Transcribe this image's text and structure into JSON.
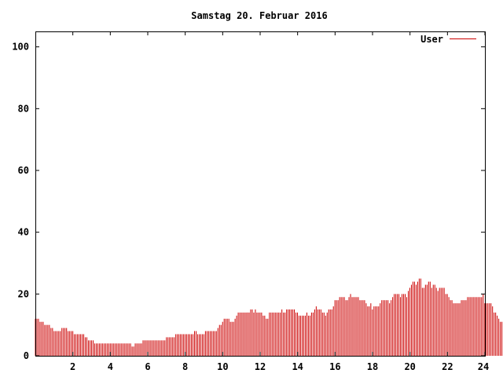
{
  "chart_data": {
    "type": "bar",
    "title": "Samstag 20. Februar 2016",
    "xlabel": "",
    "ylabel": "",
    "xlim": [
      0,
      24
    ],
    "ylim": [
      0,
      105
    ],
    "x_ticks": [
      2,
      4,
      6,
      8,
      10,
      12,
      14,
      16,
      18,
      20,
      22,
      24
    ],
    "x_tick_labels": [
      "2",
      "4",
      "6",
      "8",
      "10",
      "12",
      "14",
      "16",
      "18",
      "20",
      "22",
      "24"
    ],
    "y_ticks": [
      0,
      20,
      40,
      60,
      80,
      100
    ],
    "y_tick_labels": [
      "0",
      "20",
      "40",
      "60",
      "80",
      "100"
    ],
    "grid": false,
    "legend_position": "top-right",
    "series": [
      {
        "name": "User",
        "color": "#cc0000",
        "x_start": 0,
        "x_step": 0.0833,
        "values": [
          12,
          12,
          12,
          11,
          11,
          11,
          10,
          10,
          10,
          10,
          9,
          9,
          8,
          8,
          8,
          8,
          8,
          9,
          9,
          9,
          9,
          8,
          8,
          8,
          8,
          7,
          7,
          7,
          7,
          7,
          7,
          7,
          6,
          6,
          5,
          5,
          5,
          5,
          4,
          4,
          4,
          4,
          4,
          4,
          4,
          4,
          4,
          4,
          4,
          4,
          4,
          4,
          4,
          4,
          4,
          4,
          4,
          4,
          4,
          4,
          4,
          4,
          3,
          3,
          4,
          4,
          4,
          4,
          4,
          5,
          5,
          5,
          5,
          5,
          5,
          5,
          5,
          5,
          5,
          5,
          5,
          5,
          5,
          5,
          6,
          6,
          6,
          6,
          6,
          6,
          7,
          7,
          7,
          7,
          7,
          7,
          7,
          7,
          7,
          7,
          7,
          7,
          8,
          8,
          7,
          7,
          7,
          7,
          7,
          8,
          8,
          8,
          8,
          8,
          8,
          8,
          8,
          9,
          10,
          10,
          11,
          12,
          12,
          12,
          12,
          11,
          11,
          11,
          12,
          13,
          14,
          14,
          14,
          14,
          14,
          14,
          14,
          14,
          15,
          15,
          14,
          15,
          14,
          14,
          14,
          14,
          13,
          13,
          12,
          12,
          14,
          14,
          14,
          14,
          14,
          14,
          14,
          14,
          15,
          14,
          14,
          15,
          15,
          15,
          15,
          15,
          15,
          14,
          14,
          13,
          13,
          13,
          13,
          13,
          14,
          13,
          13,
          14,
          14,
          15,
          16,
          15,
          15,
          15,
          14,
          14,
          13,
          14,
          15,
          15,
          15,
          16,
          18,
          18,
          18,
          19,
          19,
          19,
          19,
          18,
          18,
          19,
          20,
          19,
          19,
          19,
          19,
          19,
          18,
          18,
          18,
          18,
          17,
          16,
          16,
          17,
          15,
          16,
          16,
          16,
          16,
          17,
          18,
          18,
          18,
          18,
          18,
          17,
          18,
          19,
          20,
          20,
          20,
          20,
          19,
          20,
          20,
          20,
          19,
          21,
          22,
          23,
          24,
          24,
          23,
          24,
          25,
          25,
          22,
          22,
          23,
          23,
          24,
          24,
          22,
          23,
          23,
          22,
          21,
          22,
          22,
          22,
          22,
          20,
          20,
          19,
          18,
          18,
          17,
          17,
          17,
          17,
          17,
          18,
          18,
          18,
          18,
          19,
          19,
          19,
          19,
          19,
          19,
          19,
          19,
          19,
          19,
          20,
          17,
          17,
          17,
          17,
          17,
          16,
          14,
          14,
          13,
          12,
          11,
          11,
          11,
          10
        ]
      }
    ]
  }
}
